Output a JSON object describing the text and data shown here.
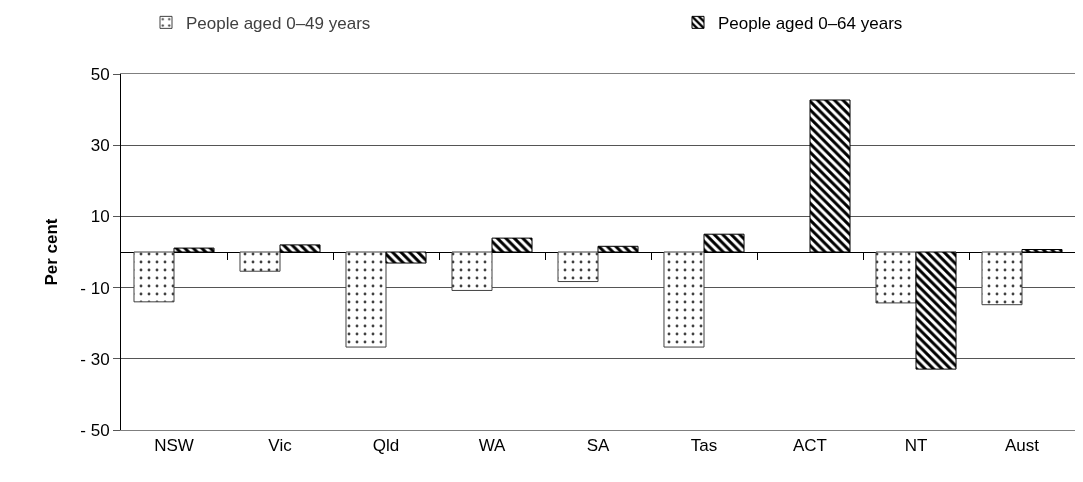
{
  "chart_data": {
    "type": "bar",
    "ylabel": "Per cent",
    "categories": [
      "NSW",
      "Vic",
      "Qld",
      "WA",
      "SA",
      "Tas",
      "ACT",
      "NT",
      "Aust"
    ],
    "series": [
      {
        "name": "People aged 0–49 years",
        "color": "#404040",
        "values": [
          -14.0,
          -5.4,
          -26.7,
          -10.8,
          -8.3,
          -26.7,
          null,
          -14.3,
          -14.8
        ]
      },
      {
        "name": "People aged 0–64 years",
        "color": "#000000",
        "values": [
          1.1,
          2.0,
          -3.1,
          3.9,
          1.6,
          5.0,
          42.7,
          -32.9,
          0.7
        ]
      }
    ],
    "ylim": [
      -50,
      50
    ],
    "yticks": [
      {
        "value": -50,
        "label": "- 50"
      },
      {
        "value": -30,
        "label": "- 30"
      },
      {
        "value": -10,
        "label": "- 10"
      },
      10,
      30,
      50
    ],
    "grid": "y",
    "legend": "top"
  }
}
